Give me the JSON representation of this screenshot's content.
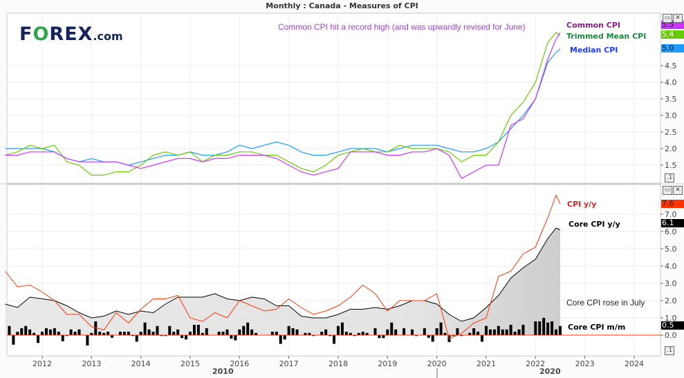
{
  "header": {
    "title": "Monthly : Canada - Measures of CPI"
  },
  "logo": {
    "text": "FOREX.com"
  },
  "colors": {
    "common_cpi": "#cc33ff",
    "trimmed_mean_cpi": "#66cc00",
    "median_cpi": "#1e9bff",
    "cpi_yy": "#ff3300",
    "core_cpi_yy": "#000000",
    "core_cpi_mm": "#000000"
  },
  "annotations": {
    "top": "Common CPI hit a record high (and was upwardly revised for June)",
    "bottom": "Core CPI rose in July"
  },
  "chart_data": [
    {
      "type": "line",
      "title": "Monthly : Canada - Measures of CPI",
      "ylim": [
        1.0,
        5.8
      ],
      "y_ticks": [
        "1.5",
        "2.0",
        "2.5",
        "3.0",
        "3.5",
        "4.0",
        "4.5"
      ],
      "grid": true,
      "dates": [
        "2011-04",
        "2011-07",
        "2011-10",
        "2012-01",
        "2012-04",
        "2012-07",
        "2012-10",
        "2013-01",
        "2013-04",
        "2013-07",
        "2013-10",
        "2014-01",
        "2014-04",
        "2014-07",
        "2014-10",
        "2015-01",
        "2015-04",
        "2015-07",
        "2015-10",
        "2016-01",
        "2016-04",
        "2016-07",
        "2016-10",
        "2017-01",
        "2017-04",
        "2017-07",
        "2017-10",
        "2018-01",
        "2018-04",
        "2018-07",
        "2018-10",
        "2019-01",
        "2019-04",
        "2019-07",
        "2019-10",
        "2020-01",
        "2020-04",
        "2020-07",
        "2020-10",
        "2021-01",
        "2021-04",
        "2021-07",
        "2021-10",
        "2022-01",
        "2022-04",
        "2022-06",
        "2022-07"
      ],
      "series": [
        {
          "name": "Common CPI",
          "last": "5.5",
          "values": [
            1.8,
            1.8,
            1.9,
            1.9,
            1.9,
            1.7,
            1.6,
            1.6,
            1.6,
            1.6,
            1.5,
            1.4,
            1.5,
            1.6,
            1.7,
            1.7,
            1.6,
            1.7,
            1.7,
            1.8,
            1.8,
            1.8,
            1.7,
            1.5,
            1.3,
            1.2,
            1.3,
            1.4,
            1.9,
            1.9,
            1.9,
            1.8,
            1.8,
            1.9,
            1.9,
            2.0,
            1.8,
            1.1,
            1.3,
            1.5,
            1.5,
            2.7,
            2.9,
            3.5,
            4.7,
            5.3,
            5.5
          ]
        },
        {
          "name": "Trimmed Mean CPI",
          "last": "5.4",
          "values": [
            1.8,
            1.9,
            2.1,
            2.0,
            2.1,
            1.6,
            1.5,
            1.2,
            1.2,
            1.3,
            1.3,
            1.5,
            1.8,
            1.9,
            1.8,
            1.9,
            1.6,
            1.8,
            1.8,
            1.9,
            1.9,
            1.8,
            1.8,
            1.6,
            1.4,
            1.3,
            1.5,
            1.8,
            1.9,
            2.0,
            1.9,
            1.9,
            2.1,
            2.0,
            2.0,
            2.0,
            1.9,
            1.6,
            1.8,
            1.8,
            2.2,
            3.0,
            3.4,
            4.0,
            5.2,
            5.5,
            5.4
          ]
        },
        {
          "name": "Median CPI",
          "last": "5.0",
          "values": [
            2.0,
            2.0,
            2.0,
            2.0,
            1.9,
            1.7,
            1.6,
            1.7,
            1.6,
            1.6,
            1.5,
            1.6,
            1.7,
            1.8,
            1.8,
            1.9,
            1.8,
            1.8,
            1.9,
            2.1,
            2.0,
            2.1,
            2.2,
            2.1,
            1.9,
            1.8,
            1.8,
            1.9,
            2.0,
            2.0,
            2.0,
            1.9,
            2.0,
            2.1,
            2.1,
            2.1,
            2.0,
            1.9,
            1.9,
            2.0,
            2.2,
            2.6,
            3.0,
            3.5,
            4.6,
            4.9,
            5.0
          ]
        }
      ]
    },
    {
      "type": "line",
      "ylim": [
        -1.2,
        8.8
      ],
      "y_ticks": [
        "0.0",
        "1.0",
        "2.0",
        "3.0",
        "4.0",
        "5.0",
        "6.0",
        "7.0"
      ],
      "grid": true,
      "dates": [
        "2011-04",
        "2011-07",
        "2011-10",
        "2012-01",
        "2012-04",
        "2012-07",
        "2012-10",
        "2013-01",
        "2013-04",
        "2013-07",
        "2013-10",
        "2014-01",
        "2014-04",
        "2014-07",
        "2014-10",
        "2015-01",
        "2015-04",
        "2015-07",
        "2015-10",
        "2016-01",
        "2016-04",
        "2016-07",
        "2016-10",
        "2017-01",
        "2017-04",
        "2017-07",
        "2017-10",
        "2018-01",
        "2018-04",
        "2018-07",
        "2018-10",
        "2019-01",
        "2019-04",
        "2019-07",
        "2019-10",
        "2020-01",
        "2020-04",
        "2020-07",
        "2020-10",
        "2021-01",
        "2021-04",
        "2021-07",
        "2021-10",
        "2022-01",
        "2022-04",
        "2022-06",
        "2022-07"
      ],
      "series": [
        {
          "name": "CPI y/y",
          "last": "7.6",
          "values": [
            3.7,
            2.8,
            2.9,
            2.5,
            2.0,
            1.2,
            1.2,
            0.5,
            0.3,
            1.3,
            0.7,
            1.5,
            2.1,
            2.1,
            2.3,
            1.0,
            0.8,
            1.3,
            1.0,
            2.0,
            1.7,
            1.4,
            1.5,
            2.1,
            1.6,
            1.2,
            1.4,
            1.7,
            2.2,
            2.9,
            2.4,
            1.4,
            2.0,
            2.0,
            2.0,
            2.4,
            -0.2,
            0.1,
            0.7,
            1.0,
            3.4,
            3.7,
            4.7,
            5.1,
            6.8,
            8.1,
            7.6
          ]
        },
        {
          "name": "Core CPI y/y",
          "last": "6.1",
          "values": [
            1.8,
            1.6,
            2.2,
            2.1,
            2.0,
            1.7,
            1.3,
            1.0,
            1.1,
            1.4,
            1.2,
            1.4,
            1.3,
            1.8,
            2.2,
            2.2,
            2.2,
            2.4,
            2.1,
            2.0,
            2.2,
            2.1,
            1.7,
            1.7,
            1.1,
            1.0,
            1.0,
            1.2,
            1.5,
            1.5,
            1.6,
            1.5,
            1.7,
            2.0,
            2.0,
            1.8,
            1.2,
            0.8,
            1.0,
            1.6,
            2.3,
            3.3,
            3.9,
            4.4,
            5.6,
            6.2,
            6.1
          ]
        }
      ],
      "bars": {
        "type": "bar",
        "name": "Core CPI m/m",
        "last": "0.5",
        "start": "2011-05",
        "values": [
          0.53,
          -0.55,
          0.2,
          0.4,
          0.53,
          0.33,
          0.13,
          -0.45,
          0.2,
          0.4,
          0.33,
          0.4,
          0.2,
          -0.35,
          -0.05,
          0.33,
          0.2,
          0.33,
          0,
          -0.6,
          0.13,
          0.8,
          0.2,
          0.13,
          0.2,
          -0.15,
          0,
          0.2,
          0.2,
          0.2,
          -0.05,
          -0.38,
          0.2,
          0.73,
          0.33,
          0.2,
          0.53,
          -0.05,
          -0.05,
          0.53,
          0.2,
          0.33,
          -0.17,
          -0.25,
          0.2,
          0.6,
          0.6,
          0.13,
          0.4,
          0,
          0,
          0.2,
          0.2,
          0.33,
          -0.2,
          -0.3,
          0.33,
          0.53,
          0.73,
          0.33,
          0.13,
          0,
          0,
          0,
          0.2,
          0.2,
          -0.5,
          -0.25,
          0.53,
          0.4,
          0.33,
          0,
          0.13,
          0.13,
          -0.05,
          0,
          0.2,
          0.33,
          -0.05,
          -0.5,
          0.53,
          0.73,
          0.2,
          0.13,
          -0.05,
          0.13,
          0.2,
          0.13,
          0,
          0.4,
          -0.17,
          -0.17,
          0.33,
          0.73,
          0.33,
          0,
          0.4,
          0,
          0.33,
          -0.05,
          0,
          0.4,
          -0.15,
          -0.38,
          0.4,
          0.73,
          0.13,
          -0.4,
          -0.05,
          0.4,
          -0.05,
          0,
          0.13,
          0.4,
          0.2,
          -0.38,
          0.53,
          0.33,
          0.33,
          0.53,
          0.33,
          0.33,
          0.6,
          0.2,
          0.33,
          0.6,
          0,
          0,
          0.8,
          0.8,
          1.0,
          0.73,
          0.8,
          0.33,
          0.53
        ]
      }
    }
  ],
  "x_axis": {
    "ticks": [
      "2012",
      "2013",
      "2014",
      "2015",
      "2016",
      "2017",
      "2018",
      "2019",
      "2020",
      "2021",
      "2022",
      "2023",
      "2024"
    ],
    "decades": [
      "2010",
      "2020"
    ]
  },
  "controls": {
    "restore": "▭",
    "close": "✕",
    "collapse": ".1"
  }
}
